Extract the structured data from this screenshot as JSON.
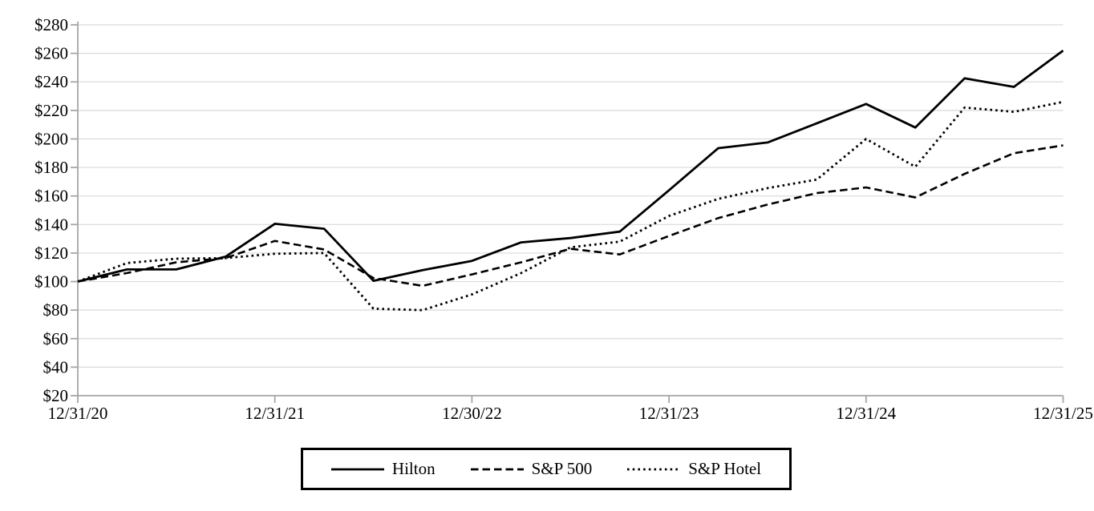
{
  "chart_data": {
    "type": "line",
    "title": "",
    "x_axis": {
      "tick_labels": [
        "12/31/20",
        "12/31/21",
        "12/30/22",
        "12/31/23",
        "12/31/24",
        "12/31/25"
      ],
      "points_per_year": 4
    },
    "y_axis": {
      "min": 20,
      "max": 280,
      "step": 20,
      "format_prefix": "$",
      "tick_labels": [
        "$20",
        "$40",
        "$60",
        "$80",
        "$100",
        "$120",
        "$140",
        "$160",
        "$180",
        "$200",
        "$220",
        "$240",
        "$260",
        "$280"
      ]
    },
    "grid": true,
    "legend_position": "bottom",
    "series": [
      {
        "name": "Hilton",
        "line_style": "solid",
        "color": "#000000",
        "values": [
          100,
          108.5,
          108.5,
          117.5,
          140.5,
          137,
          100.5,
          108,
          114.5,
          127.5,
          130.5,
          135,
          164,
          193.5,
          197.5,
          211,
          224.5,
          208,
          242.5,
          236.5,
          262
        ]
      },
      {
        "name": "S&P 500",
        "line_style": "dashed",
        "color": "#000000",
        "values": [
          100,
          106,
          113.5,
          116.5,
          128.5,
          122.5,
          102.5,
          97,
          105,
          113.5,
          123,
          119,
          132,
          144.5,
          154,
          162,
          166,
          159,
          175.5,
          190,
          195.5
        ]
      },
      {
        "name": "S&P Hotel",
        "line_style": "dotted",
        "color": "#000000",
        "values": [
          100,
          113,
          116,
          116.5,
          119.5,
          120,
          81,
          80,
          91,
          106,
          124,
          128,
          146,
          158,
          165.5,
          171.5,
          200,
          180.5,
          222,
          219,
          226
        ]
      }
    ],
    "colors": {
      "line": "#000000",
      "gridline": "#d9d9d9",
      "axis": "#a6a6a6",
      "text": "#000000",
      "legend_border": "#000000",
      "background": "#ffffff"
    }
  }
}
